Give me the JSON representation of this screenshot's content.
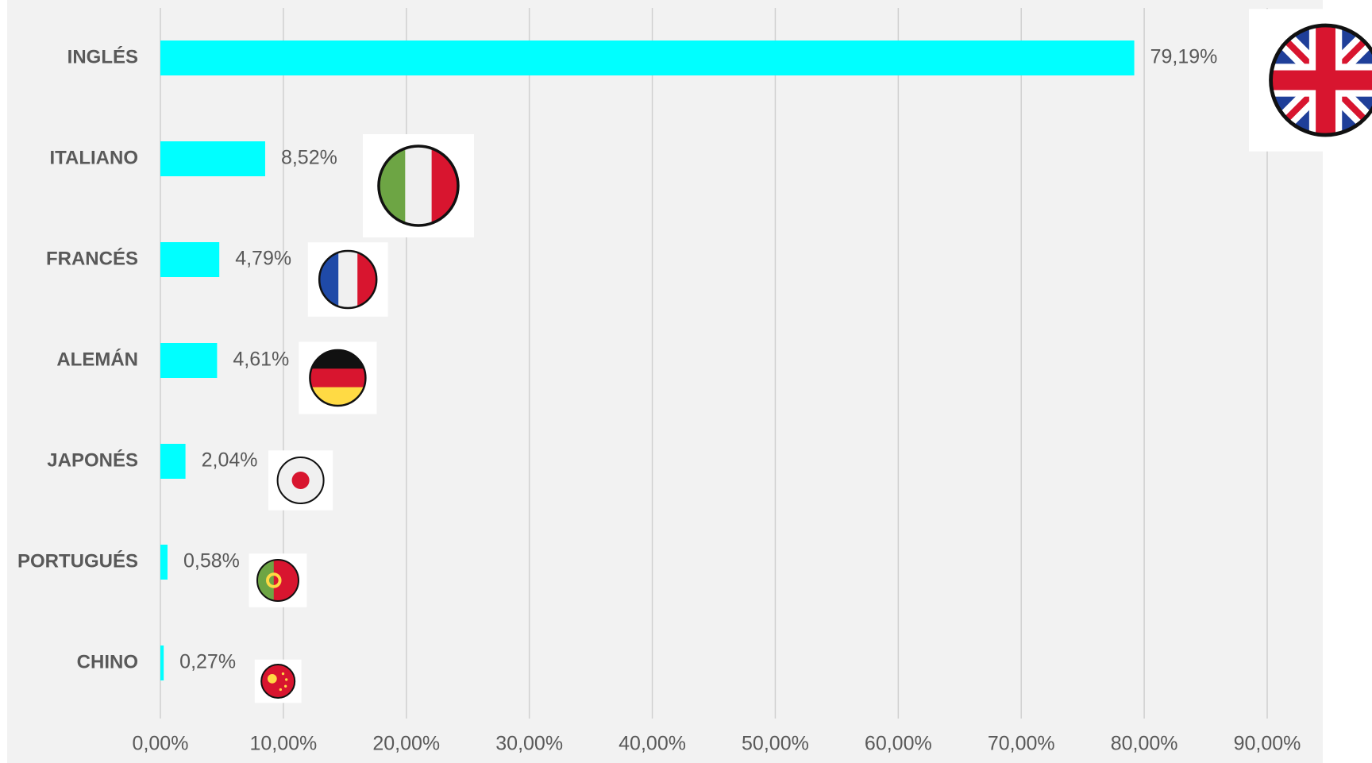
{
  "chart_data": {
    "type": "bar",
    "orientation": "horizontal",
    "categories": [
      "INGLÉS",
      "ITALIANO",
      "FRANCÉS",
      "ALEMÁN",
      "JAPONÉS",
      "PORTUGUÉS",
      "CHINO"
    ],
    "values": [
      79.19,
      8.52,
      4.79,
      4.61,
      2.04,
      0.58,
      0.27
    ],
    "value_labels": [
      "79,19%",
      "8,52%",
      "4,79%",
      "4,61%",
      "2,04%",
      "0,58%",
      "0,27%"
    ],
    "color": "#00ffff",
    "xlim": [
      0,
      90
    ],
    "xticks": [
      {
        "value": 0,
        "label": "0,00%"
      },
      {
        "value": 10,
        "label": "10,00%"
      },
      {
        "value": 20,
        "label": "20,00%"
      },
      {
        "value": 30,
        "label": "30,00%"
      },
      {
        "value": 40,
        "label": "40,00%"
      },
      {
        "value": 50,
        "label": "50,00%"
      },
      {
        "value": 60,
        "label": "60,00%"
      },
      {
        "value": 70,
        "label": "70,00%"
      },
      {
        "value": 80,
        "label": "80,00%"
      },
      {
        "value": 90,
        "label": "90,00%"
      }
    ],
    "grid": true
  }
}
